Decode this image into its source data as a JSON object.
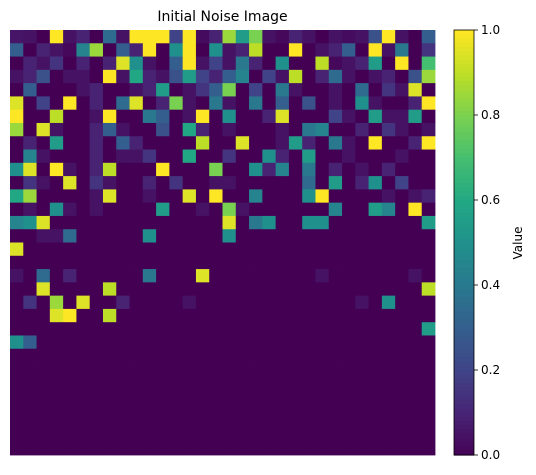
{
  "chart_data": {
    "type": "heatmap",
    "title": "Initial Noise Image",
    "colorbar": {
      "label": "Value",
      "range": [
        0.0,
        1.0
      ],
      "ticks": [
        "0.0",
        "0.2",
        "0.4",
        "0.6",
        "0.8",
        "1.0"
      ],
      "colormap": "viridis"
    },
    "rows": 32,
    "cols": 32,
    "values": [
      [
        0.06,
        0.05,
        0.0,
        1.0,
        0.05,
        0.1,
        0.0,
        0.35,
        0.05,
        1.0,
        1.0,
        1.0,
        0.2,
        1.0,
        0.03,
        0.1,
        0.85,
        0.55,
        0.8,
        0.05,
        0.02,
        0.1,
        0.05,
        0.0,
        0.05,
        0.03,
        0.05,
        0.25,
        1.0,
        0.05,
        0.0,
        0.3
      ],
      [
        0.3,
        0.0,
        0.1,
        0.05,
        0.02,
        0.45,
        0.85,
        0.0,
        0.3,
        0.1,
        1.0,
        0.0,
        0.5,
        1.0,
        0.0,
        0.5,
        0.05,
        0.1,
        0.9,
        0.0,
        0.0,
        1.0,
        0.0,
        0.05,
        0.1,
        0.3,
        0.0,
        1.0,
        0.05,
        0.4,
        0.0,
        0.15
      ],
      [
        0.0,
        0.1,
        0.05,
        0.15,
        0.0,
        0.1,
        0.0,
        0.1,
        0.95,
        0.5,
        0.05,
        0.0,
        0.3,
        1.0,
        0.05,
        0.2,
        0.05,
        0.4,
        0.1,
        0.0,
        0.5,
        0.0,
        0.0,
        0.9,
        0.02,
        0.05,
        0.1,
        0.55,
        0.0,
        1.0,
        0.0,
        0.7
      ],
      [
        0.05,
        0.1,
        0.25,
        0.0,
        0.05,
        0.05,
        0.0,
        1.0,
        0.05,
        0.6,
        0.1,
        0.05,
        0.25,
        0.55,
        0.2,
        0.1,
        0.3,
        0.45,
        0.0,
        0.2,
        0.05,
        0.9,
        0.0,
        0.1,
        0.35,
        0.05,
        0.0,
        0.05,
        0.1,
        0.0,
        0.25,
        0.85
      ],
      [
        0.0,
        0.3,
        0.0,
        0.0,
        0.0,
        0.05,
        0.1,
        0.0,
        0.0,
        0.05,
        0.1,
        0.55,
        0.0,
        0.05,
        0.15,
        0.3,
        0.8,
        0.0,
        0.2,
        0.0,
        0.4,
        0.05,
        0.0,
        0.0,
        0.05,
        0.0,
        0.35,
        0.0,
        0.15,
        0.05,
        0.95,
        0.0
      ],
      [
        0.95,
        0.0,
        0.2,
        0.0,
        1.0,
        0.0,
        0.1,
        0.0,
        0.35,
        0.95,
        0.0,
        0.1,
        0.8,
        0.05,
        0.0,
        0.4,
        0.05,
        0.0,
        0.4,
        0.0,
        0.3,
        0.0,
        0.25,
        0.0,
        0.05,
        0.0,
        0.5,
        0.05,
        0.0,
        0.0,
        0.1,
        1.0
      ],
      [
        1.0,
        0.0,
        0.0,
        0.9,
        0.0,
        0.0,
        0.05,
        1.0,
        0.0,
        0.0,
        0.4,
        0.3,
        0.0,
        0.05,
        1.0,
        0.0,
        0.5,
        0.0,
        0.0,
        0.1,
        0.95,
        0.0,
        0.0,
        0.0,
        0.2,
        0.05,
        0.0,
        0.55,
        0.05,
        0.05,
        0.55,
        0.0
      ],
      [
        0.85,
        0.0,
        0.95,
        0.05,
        0.0,
        0.0,
        0.1,
        0.3,
        0.05,
        0.0,
        0.0,
        0.25,
        0.0,
        0.6,
        0.1,
        0.0,
        0.05,
        0.0,
        0.0,
        0.0,
        0.05,
        0.0,
        0.4,
        0.45,
        0.0,
        0.0,
        0.1,
        0.0,
        0.15,
        0.05,
        0.0,
        0.05
      ],
      [
        0.0,
        0.1,
        0.0,
        0.55,
        0.0,
        0.0,
        0.1,
        0.0,
        0.3,
        0.1,
        0.0,
        0.0,
        0.0,
        0.0,
        0.9,
        0.0,
        0.0,
        0.95,
        0.0,
        0.0,
        0.05,
        0.55,
        0.1,
        0.0,
        0.4,
        0.05,
        0.0,
        1.0,
        0.0,
        0.0,
        0.1,
        1.0
      ],
      [
        0.0,
        0.45,
        0.05,
        0.0,
        0.0,
        0.0,
        0.1,
        0.0,
        0.05,
        0.05,
        0.15,
        0.0,
        0.0,
        0.6,
        0.0,
        0.0,
        0.15,
        0.0,
        0.0,
        0.5,
        0.1,
        0.0,
        0.55,
        0.0,
        0.0,
        0.05,
        0.0,
        0.0,
        0.0,
        0.05,
        0.0,
        0.0
      ],
      [
        0.5,
        0.95,
        0.0,
        1.0,
        0.05,
        0.0,
        0.1,
        0.9,
        0.0,
        0.0,
        0.0,
        1.0,
        0.0,
        0.0,
        0.0,
        0.8,
        0.0,
        0.0,
        0.5,
        0.1,
        0.45,
        0.0,
        0.4,
        0.0,
        0.1,
        0.0,
        0.05,
        0.0,
        0.1,
        0.0,
        0.0,
        0.0
      ],
      [
        0.0,
        0.15,
        0.05,
        0.0,
        0.95,
        0.0,
        0.15,
        0.05,
        0.0,
        0.0,
        0.1,
        0.0,
        0.15,
        0.0,
        0.0,
        0.05,
        0.05,
        0.0,
        0.0,
        0.0,
        0.0,
        0.0,
        0.35,
        0.0,
        0.55,
        0.0,
        0.1,
        0.5,
        0.0,
        0.2,
        0.0,
        0.0
      ],
      [
        0.6,
        0.85,
        0.0,
        0.0,
        0.0,
        0.0,
        0.05,
        0.95,
        0.0,
        0.0,
        0.05,
        0.0,
        0.0,
        0.95,
        0.0,
        1.0,
        0.0,
        0.0,
        0.45,
        0.0,
        0.0,
        0.0,
        0.5,
        1.0,
        0.0,
        0.0,
        0.0,
        0.0,
        0.05,
        0.0,
        0.05,
        0.1
      ],
      [
        0.0,
        0.05,
        0.0,
        0.5,
        0.05,
        0.0,
        0.05,
        0.0,
        0.0,
        0.0,
        0.0,
        0.55,
        0.0,
        0.0,
        0.05,
        0.0,
        0.8,
        0.05,
        0.0,
        0.0,
        0.0,
        0.0,
        0.0,
        0.0,
        0.45,
        0.0,
        0.0,
        0.55,
        0.45,
        0.0,
        1.0,
        0.0
      ],
      [
        0.45,
        0.5,
        0.95,
        0.0,
        0.0,
        0.0,
        0.0,
        0.0,
        0.0,
        0.0,
        0.0,
        0.0,
        0.0,
        0.0,
        0.0,
        0.0,
        0.95,
        0.0,
        0.4,
        0.5,
        0.0,
        0.0,
        0.5,
        0.5,
        0.0,
        0.0,
        0.0,
        0.0,
        0.0,
        0.0,
        0.0,
        0.55
      ],
      [
        0.0,
        0.0,
        0.05,
        0.05,
        0.35,
        0.0,
        0.0,
        0.0,
        0.0,
        0.0,
        0.5,
        0.0,
        0.0,
        0.0,
        0.0,
        0.0,
        0.5,
        0.0,
        0.0,
        0.0,
        0.0,
        0.0,
        0.0,
        0.0,
        0.0,
        0.0,
        0.0,
        0.0,
        0.0,
        0.0,
        0.0,
        0.0
      ],
      [
        0.95,
        0.0,
        0.0,
        0.0,
        0.0,
        0.0,
        0.0,
        0.0,
        0.0,
        0.0,
        0.0,
        0.0,
        0.0,
        0.0,
        0.0,
        0.0,
        0.0,
        0.0,
        0.0,
        0.0,
        0.0,
        0.0,
        0.0,
        0.0,
        0.0,
        0.0,
        0.0,
        0.0,
        0.0,
        0.0,
        0.0,
        0.0
      ],
      [
        0.0,
        0.0,
        0.0,
        0.0,
        0.0,
        0.0,
        0.0,
        0.0,
        0.0,
        0.0,
        0.0,
        0.0,
        0.0,
        0.0,
        0.0,
        0.0,
        0.0,
        0.0,
        0.0,
        0.0,
        0.0,
        0.0,
        0.0,
        0.0,
        0.0,
        0.0,
        0.0,
        0.0,
        0.0,
        0.0,
        0.0,
        0.0
      ],
      [
        0.05,
        0.0,
        0.35,
        0.0,
        0.1,
        0.0,
        0.0,
        0.0,
        0.0,
        0.0,
        0.4,
        0.0,
        0.0,
        0.0,
        0.95,
        0.0,
        0.0,
        0.0,
        0.0,
        0.0,
        0.0,
        0.0,
        0.0,
        0.05,
        0.0,
        0.0,
        0.0,
        0.0,
        0.0,
        0.0,
        0.05,
        0.0
      ],
      [
        0.0,
        0.0,
        0.95,
        0.0,
        0.0,
        0.0,
        0.0,
        0.9,
        0.0,
        0.0,
        0.0,
        0.0,
        0.0,
        0.0,
        0.0,
        0.0,
        0.0,
        0.0,
        0.0,
        0.0,
        0.0,
        0.0,
        0.0,
        0.0,
        0.0,
        0.0,
        0.0,
        0.0,
        0.0,
        0.0,
        0.0,
        0.9
      ],
      [
        0.0,
        0.15,
        0.0,
        0.85,
        0.0,
        0.95,
        0.0,
        0.0,
        0.1,
        0.0,
        0.0,
        0.0,
        0.0,
        0.05,
        0.0,
        0.0,
        0.0,
        0.0,
        0.0,
        0.0,
        0.0,
        0.0,
        0.0,
        0.0,
        0.0,
        0.0,
        0.05,
        0.0,
        0.5,
        0.0,
        0.0,
        0.0
      ],
      [
        0.0,
        0.0,
        0.0,
        0.95,
        1.0,
        0.0,
        0.0,
        0.9,
        0.0,
        0.0,
        0.0,
        0.0,
        0.0,
        0.0,
        0.0,
        0.0,
        0.0,
        0.0,
        0.0,
        0.0,
        0.0,
        0.0,
        0.0,
        0.0,
        0.0,
        0.0,
        0.0,
        0.0,
        0.0,
        0.0,
        0.0,
        0.0
      ],
      [
        0.0,
        0.0,
        0.0,
        0.0,
        0.0,
        0.0,
        0.0,
        0.0,
        0.0,
        0.0,
        0.0,
        0.0,
        0.0,
        0.0,
        0.0,
        0.0,
        0.0,
        0.0,
        0.0,
        0.0,
        0.0,
        0.0,
        0.0,
        0.0,
        0.0,
        0.0,
        0.0,
        0.0,
        0.0,
        0.0,
        0.0,
        0.55
      ],
      [
        0.5,
        0.3,
        0.0,
        0.0,
        0.0,
        0.0,
        0.0,
        0.0,
        0.0,
        0.0,
        0.0,
        0.0,
        0.0,
        0.0,
        0.0,
        0.0,
        0.0,
        0.0,
        0.0,
        0.0,
        0.0,
        0.0,
        0.0,
        0.0,
        0.0,
        0.0,
        0.0,
        0.0,
        0.0,
        0.0,
        0.0,
        0.0
      ],
      [
        0.0,
        0.0,
        0.0,
        0.0,
        0.0,
        0.0,
        0.0,
        0.0,
        0.0,
        0.0,
        0.0,
        0.0,
        0.0,
        0.0,
        0.0,
        0.0,
        0.0,
        0.0,
        0.0,
        0.0,
        0.0,
        0.0,
        0.0,
        0.0,
        0.0,
        0.0,
        0.0,
        0.0,
        0.0,
        0.0,
        0.0,
        0.0
      ],
      [
        0.0,
        0.0,
        0.0,
        0.0,
        0.0,
        0.0,
        0.0,
        0.0,
        0.0,
        0.0,
        0.0,
        0.0,
        0.0,
        0.0,
        0.0,
        0.0,
        0.0,
        0.0,
        0.0,
        0.0,
        0.0,
        0.0,
        0.0,
        0.0,
        0.0,
        0.0,
        0.0,
        0.0,
        0.0,
        0.0,
        0.0,
        0.0
      ],
      [
        0.0,
        0.0,
        0.0,
        0.0,
        0.0,
        0.0,
        0.0,
        0.0,
        0.0,
        0.0,
        0.0,
        0.0,
        0.0,
        0.0,
        0.0,
        0.0,
        0.0,
        0.0,
        0.0,
        0.0,
        0.0,
        0.0,
        0.0,
        0.0,
        0.0,
        0.0,
        0.0,
        0.0,
        0.0,
        0.0,
        0.0,
        0.0
      ],
      [
        0.0,
        0.0,
        0.0,
        0.0,
        0.0,
        0.0,
        0.0,
        0.0,
        0.0,
        0.0,
        0.0,
        0.0,
        0.0,
        0.0,
        0.0,
        0.0,
        0.0,
        0.0,
        0.0,
        0.0,
        0.0,
        0.0,
        0.0,
        0.0,
        0.0,
        0.0,
        0.0,
        0.0,
        0.0,
        0.0,
        0.0,
        0.0
      ],
      [
        0.0,
        0.0,
        0.0,
        0.0,
        0.0,
        0.0,
        0.0,
        0.0,
        0.0,
        0.0,
        0.0,
        0.0,
        0.0,
        0.0,
        0.0,
        0.0,
        0.0,
        0.0,
        0.0,
        0.0,
        0.0,
        0.0,
        0.0,
        0.0,
        0.0,
        0.0,
        0.0,
        0.0,
        0.0,
        0.0,
        0.0,
        0.0
      ],
      [
        0.0,
        0.0,
        0.0,
        0.0,
        0.0,
        0.0,
        0.0,
        0.0,
        0.0,
        0.0,
        0.0,
        0.0,
        0.0,
        0.0,
        0.0,
        0.0,
        0.0,
        0.0,
        0.0,
        0.0,
        0.0,
        0.0,
        0.0,
        0.0,
        0.0,
        0.0,
        0.0,
        0.0,
        0.0,
        0.0,
        0.0,
        0.0
      ],
      [
        0.0,
        0.0,
        0.0,
        0.0,
        0.0,
        0.0,
        0.0,
        0.0,
        0.0,
        0.0,
        0.0,
        0.0,
        0.0,
        0.0,
        0.0,
        0.0,
        0.0,
        0.0,
        0.0,
        0.0,
        0.0,
        0.0,
        0.0,
        0.0,
        0.0,
        0.0,
        0.0,
        0.0,
        0.0,
        0.0,
        0.0,
        0.0
      ],
      [
        0.0,
        0.0,
        0.0,
        0.0,
        0.0,
        0.0,
        0.0,
        0.0,
        0.0,
        0.0,
        0.0,
        0.0,
        0.0,
        0.0,
        0.0,
        0.0,
        0.0,
        0.0,
        0.0,
        0.0,
        0.0,
        0.0,
        0.0,
        0.0,
        0.0,
        0.0,
        0.0,
        0.0,
        0.0,
        0.0,
        0.0,
        0.0
      ]
    ]
  }
}
